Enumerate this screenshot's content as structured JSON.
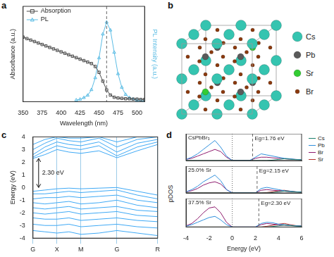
{
  "chart_data": [
    {
      "panel_label": "a",
      "type": "line",
      "x_label": "Wavelength (nm)",
      "y_label": "Absorbance (a.u.)",
      "y2_label": "PL Intensity (a.u.)",
      "xlim": [
        350,
        510
      ],
      "xticks": [
        350,
        375,
        400,
        425,
        450,
        475,
        500
      ],
      "ylim": [
        0,
        1.3
      ],
      "y2lim": [
        0,
        1.2
      ],
      "tick_labels": "x",
      "legend": "upper left",
      "reference_lines": [
        {
          "x": 460,
          "line_style": "dashed"
        }
      ],
      "series": [
        {
          "name": "Absorption",
          "color": "#4d4d4d",
          "marker": "square",
          "x": [
            350,
            355,
            360,
            365,
            370,
            375,
            380,
            385,
            390,
            395,
            400,
            405,
            410,
            415,
            420,
            425,
            430,
            435,
            440,
            445,
            450,
            455,
            460,
            465,
            470,
            475,
            480,
            485,
            490,
            495,
            500,
            505,
            510
          ],
          "values": [
            0.88,
            0.86,
            0.84,
            0.82,
            0.8,
            0.78,
            0.76,
            0.74,
            0.72,
            0.7,
            0.68,
            0.66,
            0.64,
            0.62,
            0.6,
            0.58,
            0.56,
            0.54,
            0.52,
            0.48,
            0.4,
            0.28,
            0.16,
            0.09,
            0.06,
            0.05,
            0.045,
            0.04,
            0.04,
            0.035,
            0.035,
            0.03,
            0.03
          ]
        },
        {
          "name": "PL",
          "color": "#5bbce4",
          "marker": "triangle",
          "axis": "y2",
          "x": [
            420,
            425,
            430,
            435,
            440,
            445,
            450,
            455,
            460,
            465,
            470,
            475,
            480,
            485,
            490,
            495,
            500,
            505,
            510
          ],
          "values": [
            0.02,
            0.03,
            0.05,
            0.08,
            0.15,
            0.3,
            0.55,
            0.85,
            1.0,
            0.9,
            0.62,
            0.35,
            0.18,
            0.09,
            0.05,
            0.03,
            0.02,
            0.01,
            0.01
          ]
        }
      ]
    },
    {
      "panel_label": "c",
      "type": "line",
      "y_label": "Energy (eV)",
      "x": [
        0,
        0.5,
        1,
        1.5,
        2,
        2.75,
        3.5,
        4.35,
        5.2
      ],
      "xlim": [
        0,
        5.2
      ],
      "xticks": [
        {
          "value": 0,
          "label": "G"
        },
        {
          "value": 1,
          "label": "X"
        },
        {
          "value": 2,
          "label": "M"
        },
        {
          "value": 3.5,
          "label": "G"
        },
        {
          "value": 5.2,
          "label": "R"
        }
      ],
      "ylim": [
        -4,
        4
      ],
      "yticks": [
        -4,
        -3,
        -2,
        -1,
        0,
        1,
        2,
        3,
        4
      ],
      "grid": "x",
      "color": "#3fa9f5",
      "annotations": [
        {
          "text": "2.30 eV",
          "y_from": 0,
          "y_to": 2.3
        }
      ],
      "series": [
        {
          "values": [
            2.3,
            2.6,
            3.0,
            2.8,
            2.7,
            2.9,
            2.35,
            2.9,
            3.4
          ]
        },
        {
          "values": [
            2.4,
            2.9,
            3.3,
            3.1,
            3.0,
            3.3,
            2.5,
            3.2,
            3.6
          ]
        },
        {
          "values": [
            2.6,
            3.2,
            3.6,
            3.4,
            3.3,
            3.6,
            2.8,
            3.5,
            3.8
          ]
        },
        {
          "values": [
            3.0,
            3.5,
            3.9,
            3.7,
            3.6,
            3.9,
            3.2,
            3.8,
            4.0
          ]
        },
        {
          "values": [
            3.4,
            3.8,
            4.0,
            3.9,
            3.9,
            4.0,
            3.6,
            4.0,
            4.0
          ]
        },
        {
          "values": [
            -0.3,
            -0.2,
            -0.1,
            -0.05,
            -0.1,
            -0.05,
            0.0,
            -0.3,
            -0.6
          ]
        },
        {
          "values": [
            -0.5,
            -0.5,
            -0.4,
            -0.3,
            -0.4,
            -0.3,
            -0.2,
            -0.6,
            -0.9
          ]
        },
        {
          "values": [
            -0.9,
            -0.8,
            -0.8,
            -0.7,
            -0.8,
            -0.7,
            -0.6,
            -1.0,
            -1.2
          ]
        },
        {
          "values": [
            -1.2,
            -1.3,
            -1.2,
            -1.1,
            -1.3,
            -1.2,
            -1.0,
            -1.4,
            -1.6
          ]
        },
        {
          "values": [
            -1.6,
            -1.7,
            -1.6,
            -1.5,
            -1.7,
            -1.6,
            -1.5,
            -1.8,
            -1.9
          ]
        },
        {
          "values": [
            -2.0,
            -2.1,
            -2.0,
            -1.9,
            -2.1,
            -2.0,
            -1.9,
            -2.2,
            -2.3
          ]
        },
        {
          "values": [
            -2.4,
            -2.5,
            -2.5,
            -2.4,
            -2.6,
            -2.5,
            -2.4,
            -2.6,
            -2.7
          ]
        },
        {
          "values": [
            -2.9,
            -3.0,
            -3.0,
            -2.9,
            -3.1,
            -3.0,
            -2.9,
            -3.1,
            -3.2
          ]
        },
        {
          "values": [
            -3.4,
            -3.5,
            -3.6,
            -3.5,
            -3.7,
            -3.6,
            -3.4,
            -3.6,
            -3.8
          ]
        }
      ]
    },
    {
      "panel_label": "d",
      "type": "line",
      "x_label": "Energy (eV)",
      "y_label": "pDOS",
      "x": [
        -4,
        -3.5,
        -3,
        -2.5,
        -2,
        -1.5,
        -1,
        -0.5,
        0,
        0.5,
        1,
        1.5,
        2,
        2.5,
        3,
        3.5,
        4,
        4.5,
        5,
        5.5,
        6
      ],
      "xlim": [
        -4,
        6
      ],
      "xticks": [
        -4,
        -2,
        0,
        2,
        4,
        6
      ],
      "tick_labels": "x",
      "legend": "right",
      "subplots": [
        {
          "title": "CsPbBr₃",
          "ylim": [
            0,
            1.2
          ],
          "reference_lines": [
            {
              "x": 0,
              "line_style": "dotted"
            }
          ],
          "annotations": [
            {
              "text": "Eg=1.76 eV",
              "x": 1.76,
              "line_style": "dashed"
            }
          ],
          "series": [
            {
              "name": "Cs",
              "color": "#1b7f6b",
              "values": [
                0,
                0,
                0,
                0,
                0,
                0,
                0,
                0,
                0,
                0,
                0,
                0,
                0,
                0,
                0,
                0.02,
                0.05,
                0.08,
                0.06,
                0.04,
                0.03
              ]
            },
            {
              "name": "Pb",
              "color": "#2f8fdc",
              "values": [
                0.05,
                0.15,
                0.3,
                0.5,
                0.7,
                0.9,
                0.6,
                0.2,
                0,
                0,
                0,
                0,
                0.15,
                0.3,
                0.25,
                0.2,
                0.15,
                0.1,
                0.08,
                0.05,
                0.04
              ]
            },
            {
              "name": "Br",
              "color": "#8e1b6e",
              "values": [
                0.05,
                0.1,
                0.2,
                0.3,
                0.4,
                0.5,
                0.4,
                0.15,
                0,
                0,
                0,
                0,
                0.1,
                0.15,
                0.15,
                0.12,
                0.1,
                0.08,
                0.06,
                0.05,
                0.04
              ]
            }
          ]
        },
        {
          "title": "25.0% Sr",
          "ylim": [
            0,
            1.2
          ],
          "reference_lines": [
            {
              "x": 0,
              "line_style": "dotted"
            }
          ],
          "annotations": [
            {
              "text": "Eg=2.15 eV",
              "x": 2.15,
              "line_style": "dashed"
            }
          ],
          "series": [
            {
              "name": "Cs",
              "color": "#1b7f6b",
              "values": [
                0,
                0,
                0,
                0,
                0,
                0,
                0,
                0,
                0,
                0,
                0,
                0,
                0,
                0,
                0,
                0.02,
                0.05,
                0.08,
                0.06,
                0.04,
                0.03
              ]
            },
            {
              "name": "Pb",
              "color": "#2f8fdc",
              "values": [
                0.05,
                0.15,
                0.3,
                0.5,
                0.65,
                0.8,
                0.55,
                0.15,
                0,
                0,
                0,
                0,
                0,
                0.2,
                0.25,
                0.2,
                0.15,
                0.1,
                0.08,
                0.05,
                0.04
              ]
            },
            {
              "name": "Br",
              "color": "#8e1b6e",
              "values": [
                0.05,
                0.1,
                0.2,
                0.35,
                0.45,
                0.5,
                0.4,
                0.15,
                0,
                0,
                0,
                0,
                0,
                0.12,
                0.15,
                0.12,
                0.1,
                0.08,
                0.06,
                0.05,
                0.04
              ]
            },
            {
              "name": "Sr",
              "color": "#b5302a",
              "values": [
                0,
                0,
                0,
                0,
                0,
                0,
                0,
                0,
                0,
                0,
                0,
                0,
                0,
                0,
                0.02,
                0.05,
                0.1,
                0.12,
                0.08,
                0.05,
                0.03
              ]
            }
          ]
        },
        {
          "title": "37.5% Sr",
          "ylim": [
            0,
            1.2
          ],
          "reference_lines": [
            {
              "x": 0,
              "line_style": "dotted"
            }
          ],
          "annotations": [
            {
              "text": "Eg=2.30 eV",
              "x": 2.3,
              "line_style": "dashed"
            }
          ],
          "series": [
            {
              "name": "Cs",
              "color": "#1b7f6b",
              "values": [
                0,
                0,
                0,
                0,
                0,
                0,
                0,
                0,
                0,
                0,
                0,
                0,
                0,
                0,
                0,
                0.02,
                0.05,
                0.08,
                0.06,
                0.04,
                0.03
              ]
            },
            {
              "name": "Pb",
              "color": "#2f8fdc",
              "values": [
                0.03,
                0.1,
                0.2,
                0.3,
                0.4,
                0.45,
                0.3,
                0.1,
                0,
                0,
                0,
                0,
                0,
                0.15,
                0.2,
                0.18,
                0.12,
                0.1,
                0.07,
                0.05,
                0.04
              ]
            },
            {
              "name": "Br",
              "color": "#8e1b6e",
              "values": [
                0.05,
                0.15,
                0.35,
                0.6,
                0.8,
                0.85,
                0.6,
                0.2,
                0,
                0,
                0,
                0,
                0,
                0.1,
                0.15,
                0.12,
                0.1,
                0.08,
                0.06,
                0.05,
                0.04
              ]
            },
            {
              "name": "Sr",
              "color": "#b5302a",
              "values": [
                0,
                0,
                0,
                0,
                0,
                0,
                0,
                0,
                0,
                0,
                0,
                0,
                0,
                0,
                0.03,
                0.07,
                0.12,
                0.15,
                0.1,
                0.06,
                0.04
              ]
            }
          ]
        }
      ]
    }
  ],
  "structure": {
    "panel_label": "b",
    "legend": [
      {
        "label": "Cs",
        "color": "#35c4b0"
      },
      {
        "label": "Pb",
        "color": "#5a5a5a"
      },
      {
        "label": "Sr",
        "color": "#33cc33"
      },
      {
        "label": "Br",
        "color": "#8b3a0e"
      }
    ]
  }
}
